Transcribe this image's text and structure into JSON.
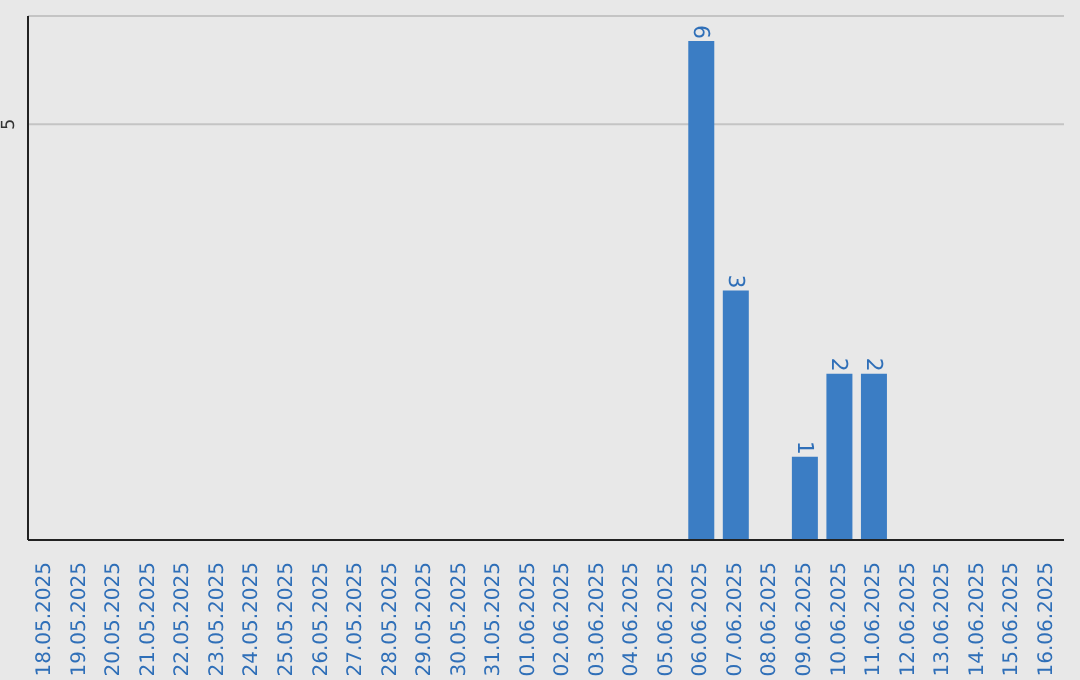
{
  "chart_data": {
    "type": "bar",
    "categories": [
      "18.05.2025",
      "19.05.2025",
      "20.05.2025",
      "21.05.2025",
      "22.05.2025",
      "23.05.2025",
      "24.05.2025",
      "25.05.2025",
      "26.05.2025",
      "27.05.2025",
      "28.05.2025",
      "29.05.2025",
      "30.05.2025",
      "31.05.2025",
      "01.06.2025",
      "02.06.2025",
      "03.06.2025",
      "04.06.2025",
      "05.06.2025",
      "06.06.2025",
      "07.06.2025",
      "08.06.2025",
      "09.06.2025",
      "10.06.2025",
      "11.06.2025",
      "12.06.2025",
      "13.06.2025",
      "14.06.2025",
      "15.06.2025",
      "16.06.2025"
    ],
    "values": [
      null,
      null,
      null,
      null,
      null,
      null,
      null,
      null,
      null,
      null,
      null,
      null,
      null,
      null,
      null,
      null,
      null,
      null,
      null,
      6,
      3,
      null,
      1,
      2,
      2,
      null,
      null,
      null,
      null,
      null
    ],
    "color": "#3b7dc4",
    "ylim": [
      0,
      6.3
    ],
    "yticks": [
      5
    ],
    "grid": "y",
    "data_labels": true
  }
}
